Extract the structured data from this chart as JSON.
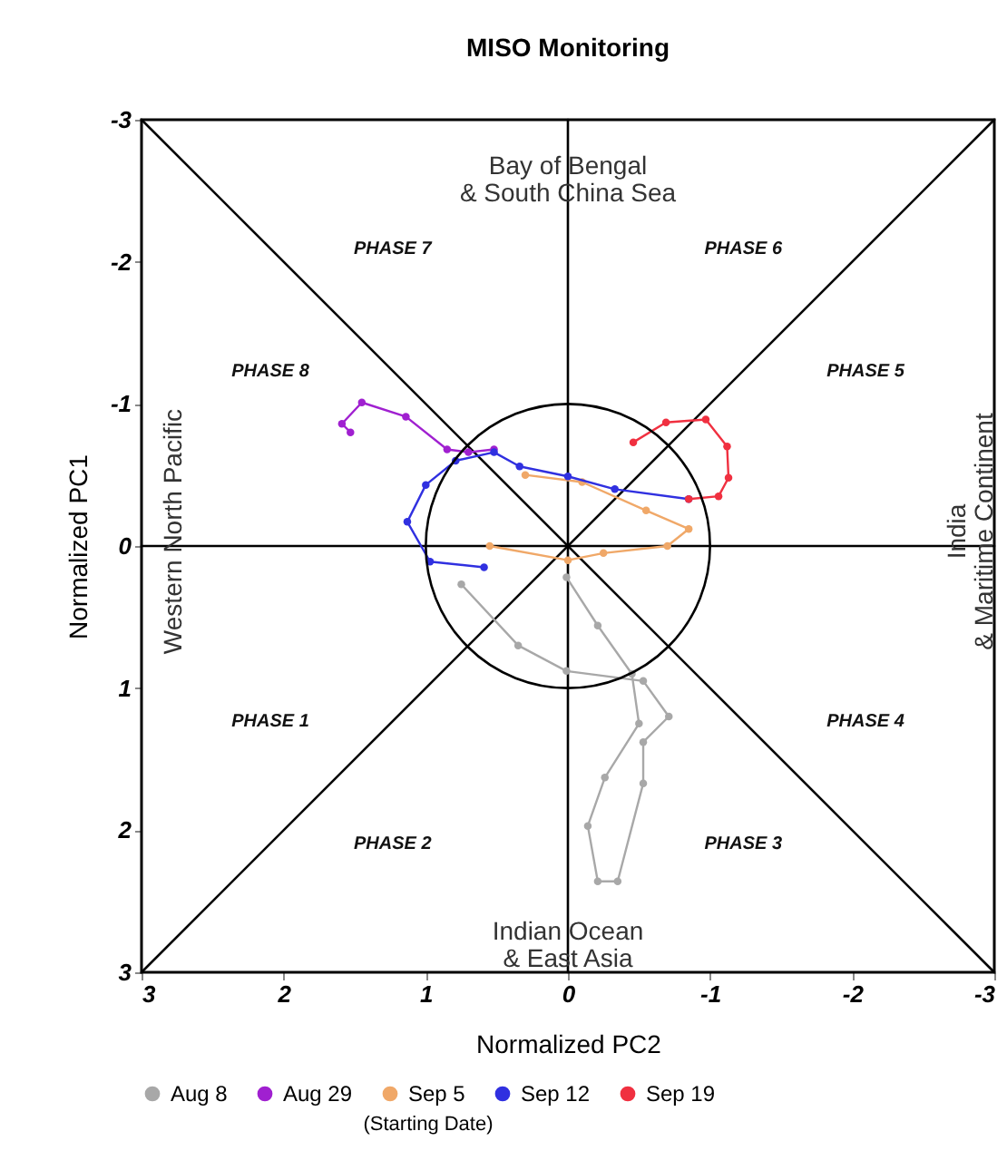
{
  "chart_data": {
    "type": "line",
    "title": "MISO Monitoring",
    "xlabel": "Normalized PC2",
    "ylabel": "Normalized PC1",
    "legend_title": "(Starting Date)",
    "xlim": [
      3,
      -3
    ],
    "ylim": [
      3,
      -3
    ],
    "xticks": [
      3,
      2,
      1,
      0,
      -1,
      -2,
      -3
    ],
    "yticks": [
      -3,
      -2,
      -1,
      0,
      1,
      2,
      3
    ],
    "grid": false,
    "legend": "bottom",
    "marker": "circle",
    "line_style": "solid",
    "series": [
      {
        "type": "line",
        "color": "#000000",
        "marker": "none",
        "x": [
          3,
          -3
        ],
        "values": [
          -3,
          3
        ]
      },
      {
        "type": "line",
        "color": "#000000",
        "marker": "none",
        "x": [
          3,
          -3
        ],
        "values": [
          3,
          -3
        ]
      },
      {
        "type": "line",
        "color": "#000000",
        "marker": "none",
        "x": [
          0,
          0
        ],
        "values": [
          -3,
          3
        ]
      },
      {
        "type": "line",
        "color": "#000000",
        "marker": "none",
        "x": [
          3,
          -3
        ],
        "values": [
          0,
          0
        ]
      },
      {
        "name": "Aug 8",
        "color": "#a8a8a8",
        "x": [
          0.75,
          0.35,
          0.01,
          -0.53,
          -0.71,
          -0.53,
          -0.53,
          -0.35,
          -0.21,
          -0.14,
          -0.26,
          -0.5,
          -0.45,
          -0.21,
          0.01
        ],
        "values": [
          0.27,
          0.7,
          0.88,
          0.95,
          1.2,
          1.38,
          1.67,
          2.36,
          2.36,
          1.97,
          1.63,
          1.25,
          0.9,
          0.56,
          0.22
        ]
      },
      {
        "name": "Aug 29",
        "color": "#a020d0",
        "x": [
          0.52,
          0.7,
          0.85,
          1.14,
          1.45,
          1.59,
          1.53
        ],
        "values": [
          -0.68,
          -0.66,
          -0.68,
          -0.91,
          -1.01,
          -0.86,
          -0.8
        ]
      },
      {
        "name": "Sep 5",
        "color": "#f0a868",
        "x": [
          0.3,
          -0.1,
          -0.55,
          -0.85,
          -0.7,
          -0.25,
          0.0,
          0.55
        ],
        "values": [
          -0.5,
          -0.45,
          -0.25,
          -0.12,
          0.0,
          0.05,
          0.1,
          0.0
        ]
      },
      {
        "name": "Sep 12",
        "color": "#3030e0",
        "x": [
          -0.85,
          -0.33,
          0.0,
          0.34,
          0.52,
          0.79,
          1.0,
          1.13,
          0.97,
          0.59
        ],
        "values": [
          -0.33,
          -0.4,
          -0.49,
          -0.56,
          -0.66,
          -0.6,
          -0.43,
          -0.17,
          0.11,
          0.15
        ]
      },
      {
        "name": "Sep 19",
        "color": "#f03040",
        "x": [
          -0.46,
          -0.69,
          -0.97,
          -1.12,
          -1.13,
          -1.06,
          -0.85
        ],
        "values": [
          -0.73,
          -0.87,
          -0.89,
          -0.7,
          -0.48,
          -0.35,
          -0.33
        ]
      }
    ],
    "annotations": [
      "Bay of Bengal\n& South China Sea",
      "Indian Ocean\n& East Asia",
      "Western North Pacific",
      "India\n& Maritime Continent",
      "PHASE 1",
      "PHASE 2",
      "PHASE 3",
      "PHASE 4",
      "PHASE 5",
      "PHASE 6",
      "PHASE 7",
      "PHASE 8"
    ]
  }
}
